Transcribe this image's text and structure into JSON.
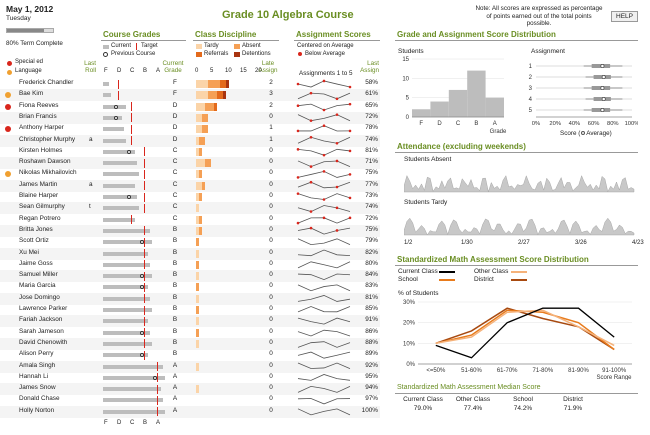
{
  "header": {
    "date": "May 1, 2012",
    "weekday": "Tuesday",
    "term_label": "80% Term Complete",
    "term_progress": 0.8,
    "title": "Grade 10 Algebra Course",
    "note": "Note: All scores are expressed as percentage of points earned out of the total points possible.",
    "help_label": "HELP"
  },
  "legend_left": {
    "special_ed": "Special ed",
    "language": "Language",
    "special_ed_color": "#d9261c",
    "language_color": "#f0a030"
  },
  "sections": {
    "course_grades": "Course Grades",
    "class_discipline": "Class Discipline",
    "assignment_scores": "Assignment Scores",
    "distribution": "Grade and Assignment Score Distribution",
    "attendance": "Attendance (excluding weekends)",
    "math_dist": "Standardized Math Assessment Score Distribution",
    "math_median": "Standardized Math Assessment Median Score"
  },
  "course_legend": {
    "current": "Current",
    "target": "Target",
    "previous": "Previous Course"
  },
  "discipline_legend": {
    "tardy": "Tardy",
    "absent": "Absent",
    "referrals": "Referrals",
    "detentions": "Detentions"
  },
  "assign_legend": {
    "centered": "Centered on Average",
    "below": "Below Average",
    "assign_label": "Assignments 1 to 5"
  },
  "col_headers": {
    "last_roll_1": "Last",
    "last_roll_2": "Roll",
    "current_1": "Current",
    "current_2": "Grade",
    "late_1": "Late",
    "late_2": "Assign",
    "last_1": "Last",
    "last_2": "Assign"
  },
  "grade_axis": [
    "F",
    "D",
    "C",
    "B",
    "A"
  ],
  "disc_axis": [
    "0",
    "5",
    "10",
    "15",
    "20"
  ],
  "students": [
    {
      "name": "Frederick Chandler",
      "flag": "",
      "roll": "",
      "grade": "F",
      "late": "2",
      "last": "58%"
    },
    {
      "name": "Bae Kim",
      "flag": "language",
      "roll": "",
      "grade": "F",
      "late": "3",
      "last": "61%"
    },
    {
      "name": "Fiona Reeves",
      "flag": "special",
      "roll": "",
      "grade": "D",
      "late": "2",
      "last": "65%"
    },
    {
      "name": "Brian Francis",
      "flag": "",
      "roll": "",
      "grade": "D",
      "late": "0",
      "last": "72%"
    },
    {
      "name": "Anthony Harper",
      "flag": "special",
      "roll": "",
      "grade": "D",
      "late": "1",
      "last": "78%"
    },
    {
      "name": "Christopher Murphy",
      "flag": "",
      "roll": "a",
      "grade": "D",
      "late": "1",
      "last": "74%"
    },
    {
      "name": "Kirsten Holmes",
      "flag": "",
      "roll": "",
      "grade": "C",
      "late": "0",
      "last": "81%"
    },
    {
      "name": "Roshawn Dawson",
      "flag": "",
      "roll": "",
      "grade": "C",
      "late": "0",
      "last": "71%"
    },
    {
      "name": "Nikolas Mikhailovich",
      "flag": "language",
      "roll": "",
      "grade": "C",
      "late": "0",
      "last": "75%"
    },
    {
      "name": "James Martin",
      "flag": "",
      "roll": "a",
      "grade": "C",
      "late": "0",
      "last": "77%"
    },
    {
      "name": "Blaine Harper",
      "flag": "",
      "roll": "",
      "grade": "C",
      "late": "0",
      "last": "73%"
    },
    {
      "name": "Sean Gilmurphy",
      "flag": "",
      "roll": "t",
      "grade": "C",
      "late": "0",
      "last": "74%"
    },
    {
      "name": "Regan Potrero",
      "flag": "",
      "roll": "",
      "grade": "C",
      "late": "0",
      "last": "72%"
    },
    {
      "name": "Britta Jones",
      "flag": "",
      "roll": "",
      "grade": "B",
      "late": "0",
      "last": "75%"
    },
    {
      "name": "Scott Ortiz",
      "flag": "",
      "roll": "",
      "grade": "B",
      "late": "0",
      "last": "79%"
    },
    {
      "name": "Xu Mei",
      "flag": "",
      "roll": "",
      "grade": "B",
      "late": "0",
      "last": "82%"
    },
    {
      "name": "Jaime Goss",
      "flag": "",
      "roll": "",
      "grade": "B",
      "late": "0",
      "last": "80%"
    },
    {
      "name": "Samuel Miller",
      "flag": "",
      "roll": "",
      "grade": "B",
      "late": "0",
      "last": "84%"
    },
    {
      "name": "Maria Garcia",
      "flag": "",
      "roll": "",
      "grade": "B",
      "late": "0",
      "last": "83%"
    },
    {
      "name": "Jose Domingo",
      "flag": "",
      "roll": "",
      "grade": "B",
      "late": "0",
      "last": "81%"
    },
    {
      "name": "Lawrence Parker",
      "flag": "",
      "roll": "",
      "grade": "B",
      "late": "0",
      "last": "85%"
    },
    {
      "name": "Fariah Jackson",
      "flag": "",
      "roll": "",
      "grade": "B",
      "late": "0",
      "last": "91%"
    },
    {
      "name": "Sarah Jameson",
      "flag": "",
      "roll": "",
      "grade": "B",
      "late": "0",
      "last": "86%"
    },
    {
      "name": "David Chenowith",
      "flag": "",
      "roll": "",
      "grade": "B",
      "late": "0",
      "last": "88%"
    },
    {
      "name": "Alison Perry",
      "flag": "",
      "roll": "",
      "grade": "B",
      "late": "0",
      "last": "89%"
    },
    {
      "name": "Amala Singh",
      "flag": "",
      "roll": "",
      "grade": "A",
      "late": "0",
      "last": "92%"
    },
    {
      "name": "Hannah Li",
      "flag": "",
      "roll": "",
      "grade": "A",
      "late": "0",
      "last": "95%"
    },
    {
      "name": "James Snow",
      "flag": "",
      "roll": "",
      "grade": "A",
      "late": "0",
      "last": "94%"
    },
    {
      "name": "Donald Chase",
      "flag": "",
      "roll": "",
      "grade": "A",
      "late": "0",
      "last": "97%"
    },
    {
      "name": "Holly Norton",
      "flag": "",
      "roll": "",
      "grade": "A",
      "late": "0",
      "last": "100%"
    }
  ],
  "dist": {
    "students_label": "Students",
    "assignment_label": "Assignment",
    "grade_label": "Grade",
    "score_label": "Score (",
    "avg_label": "Average)",
    "students_y": [
      "0",
      "5",
      "10",
      "15"
    ],
    "students_x": [
      "F",
      "D",
      "C",
      "B",
      "A"
    ],
    "assign_y": [
      "1",
      "2",
      "3",
      "4",
      "5"
    ],
    "assign_x": [
      "0%",
      "20%",
      "40%",
      "60%",
      "80%",
      "100%"
    ]
  },
  "attendance": {
    "absent_label": "Students Absent",
    "tardy_label": "Students Tardy",
    "dates": [
      "1/2",
      "1/30",
      "2/27",
      "3/26",
      "4/23"
    ]
  },
  "math": {
    "legend_current": "Current Class",
    "legend_other": "Other Class",
    "legend_school": "School",
    "legend_district": "District",
    "y_label": "% of Students",
    "y_ticks": [
      "0%",
      "10%",
      "20%",
      "30%"
    ],
    "categories": [
      "<=50%",
      "51-60%",
      "61-70%",
      "71-80%",
      "81-90%",
      "91-100%"
    ],
    "x_label": "Score Range"
  },
  "median": {
    "headers": [
      "Current Class",
      "Other Class",
      "School",
      "District"
    ],
    "values": [
      "79.0%",
      "77.4%",
      "74.2%",
      "71.9%"
    ]
  },
  "chart_data": [
    {
      "type": "bar",
      "title": "Students",
      "categories": [
        "F",
        "D",
        "C",
        "B",
        "A"
      ],
      "values": [
        2,
        4,
        7,
        12,
        5
      ],
      "xlabel": "Grade",
      "ylim": [
        0,
        15
      ]
    },
    {
      "type": "line",
      "title": "Standardized Math Assessment Score Distribution",
      "categories": [
        "<=50%",
        "51-60%",
        "61-70%",
        "71-80%",
        "81-90%",
        "91-100%"
      ],
      "series": [
        {
          "name": "Current Class",
          "values": [
            9,
            3,
            20,
            27,
            27,
            13
          ]
        },
        {
          "name": "Other Class",
          "values": [
            10,
            13,
            25,
            26,
            18,
            9
          ]
        },
        {
          "name": "School",
          "values": [
            10,
            14,
            26,
            25,
            20,
            7
          ]
        },
        {
          "name": "District",
          "values": [
            10,
            16,
            27,
            22,
            18,
            7
          ]
        }
      ],
      "ylabel": "% of Students",
      "xlabel": "Score Range",
      "ylim": [
        0,
        30
      ]
    }
  ]
}
